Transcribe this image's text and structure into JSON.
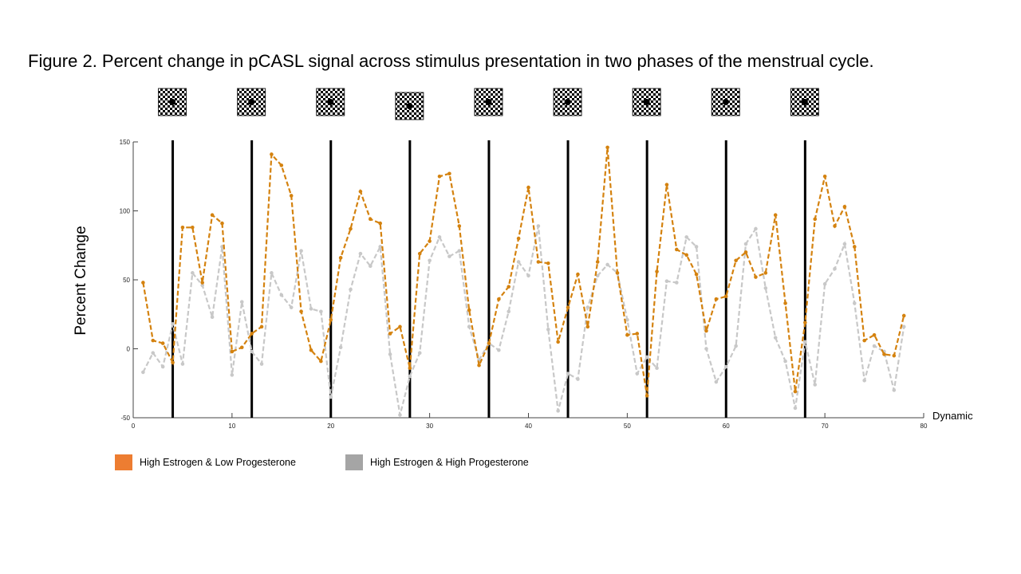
{
  "chart_data": {
    "type": "line",
    "title": "Figure 2. Percent change in pCASL signal across stimulus presentation in two phases of the menstrual cycle.",
    "xlabel": "Dynamic",
    "ylabel": "Percent Change",
    "xlim": [
      0,
      80
    ],
    "ylim": [
      -50,
      150
    ],
    "xticks": [
      0,
      10,
      20,
      30,
      40,
      50,
      60,
      70,
      80
    ],
    "yticks": [
      -50,
      0,
      50,
      100,
      150
    ],
    "stimulus_onsets": [
      4,
      12,
      20,
      28,
      36,
      44,
      52,
      60,
      68
    ],
    "stimulus_icon": "checkerboard-stimulus",
    "series": [
      {
        "name": "High Estrogen & Low Progesterone",
        "color": "#d4820f",
        "legend_color": "#ed7d31",
        "x": [
          1,
          2,
          3,
          4,
          5,
          6,
          7,
          8,
          9,
          10,
          11,
          12,
          13,
          14,
          15,
          16,
          17,
          18,
          19,
          20,
          21,
          22,
          23,
          24,
          25,
          26,
          27,
          28,
          29,
          30,
          31,
          32,
          33,
          34,
          35,
          36,
          37,
          38,
          39,
          40,
          41,
          42,
          43,
          44,
          45,
          46,
          47,
          48,
          49,
          50,
          51,
          52,
          53,
          54,
          55,
          56,
          57,
          58,
          59,
          60,
          61,
          62,
          63,
          64,
          65,
          66,
          67,
          68,
          69,
          70,
          71,
          72,
          73,
          74,
          75,
          76,
          77,
          78
        ],
        "values": [
          48,
          6,
          4,
          -10,
          88,
          88,
          48,
          97,
          91,
          -2,
          1,
          11,
          16,
          141,
          133,
          111,
          27,
          -1,
          -9,
          21,
          66,
          87,
          114,
          94,
          91,
          11,
          16,
          -14,
          69,
          78,
          125,
          127,
          89,
          28,
          -12,
          4,
          36,
          45,
          80,
          117,
          63,
          62,
          5,
          30,
          54,
          16,
          63,
          146,
          55,
          10,
          11,
          -34,
          56,
          119,
          72,
          68,
          54,
          13,
          36,
          38,
          64,
          70,
          52,
          55,
          97,
          33,
          -31,
          19,
          94,
          125,
          89,
          103,
          74,
          6,
          10,
          -4,
          -5,
          24
        ]
      },
      {
        "name": "High Estrogen & High Progesterone",
        "color": "#c8c8c8",
        "legend_color": "#a5a5a5",
        "x": [
          1,
          2,
          3,
          4,
          5,
          6,
          7,
          8,
          9,
          10,
          11,
          12,
          13,
          14,
          15,
          16,
          17,
          18,
          19,
          20,
          21,
          22,
          23,
          24,
          25,
          26,
          27,
          28,
          29,
          30,
          31,
          32,
          33,
          34,
          35,
          36,
          37,
          38,
          39,
          40,
          41,
          42,
          43,
          44,
          45,
          46,
          47,
          48,
          49,
          50,
          51,
          52,
          53,
          54,
          55,
          56,
          57,
          58,
          59,
          60,
          61,
          62,
          63,
          64,
          65,
          66,
          67,
          68,
          69,
          70,
          71,
          72,
          73,
          74,
          75,
          76,
          77,
          78
        ],
        "values": [
          -17,
          -3,
          -13,
          18,
          -11,
          55,
          46,
          23,
          74,
          -19,
          34,
          -2,
          -11,
          55,
          39,
          30,
          71,
          29,
          27,
          -35,
          1,
          43,
          69,
          60,
          74,
          -4,
          -48,
          -20,
          -3,
          64,
          81,
          67,
          71,
          16,
          -8,
          4,
          -1,
          27,
          63,
          53,
          89,
          14,
          -45,
          -18,
          -22,
          30,
          53,
          61,
          55,
          21,
          -18,
          -6,
          -14,
          49,
          48,
          81,
          74,
          0,
          -24,
          -13,
          2,
          76,
          87,
          44,
          8,
          -9,
          -43,
          5,
          -26,
          47,
          58,
          76,
          33,
          -23,
          2,
          -2,
          -30,
          16
        ]
      }
    ]
  }
}
